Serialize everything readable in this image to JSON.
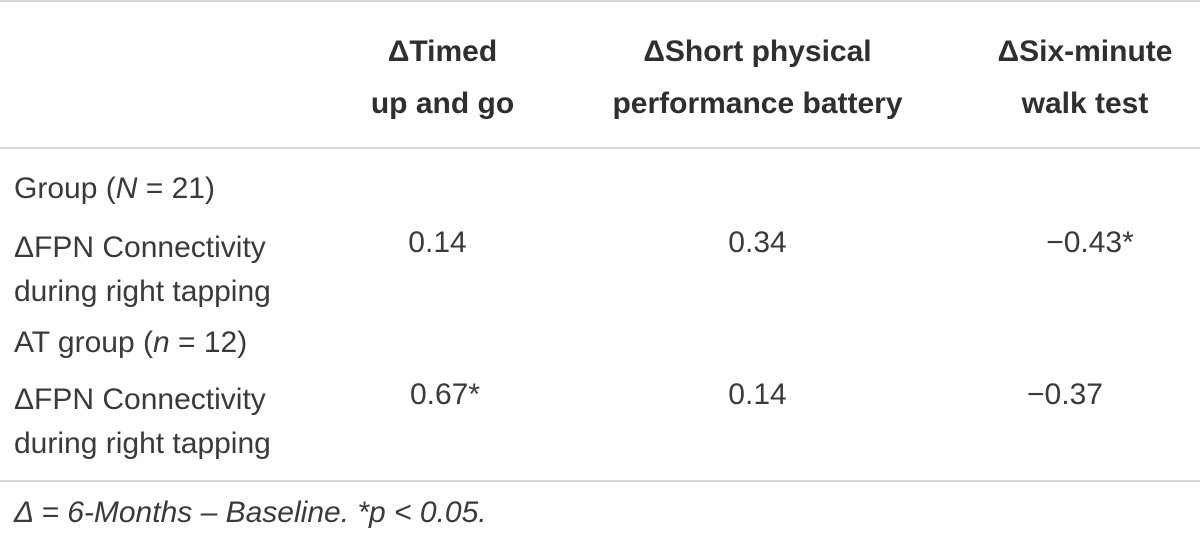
{
  "table": {
    "headers": [
      {
        "line1": "ΔTimed",
        "line2": "up and go"
      },
      {
        "line1": "ΔShort physical",
        "line2": "performance battery"
      },
      {
        "line1": "ΔSix-minute",
        "line2": "walk test"
      }
    ],
    "groups": [
      {
        "label_prefix": "Group (",
        "label_var": "N",
        "label_suffix": " = 21)",
        "row_label_line1": "ΔFPN Connectivity",
        "row_label_line2": "during right tapping",
        "values": [
          "0.14",
          "0.34",
          "−0.43*"
        ]
      },
      {
        "label_prefix": "AT group (",
        "label_var": "n",
        "label_suffix": " = 12)",
        "row_label_line1": "ΔFPN Connectivity",
        "row_label_line2": "during right tapping",
        "values": [
          "0.67*",
          "0.14",
          "−0.37"
        ]
      }
    ],
    "footnote": "Δ = 6-Months – Baseline. *p < 0.05."
  }
}
